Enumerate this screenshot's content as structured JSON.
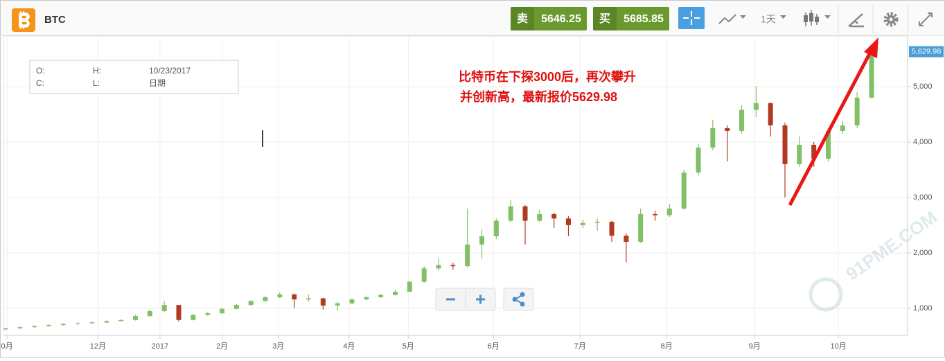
{
  "header": {
    "symbol": "BTC",
    "sell_label": "卖",
    "sell_price": 5646.25,
    "buy_label": "买",
    "buy_price": 5685.85,
    "interval": "1天"
  },
  "info_box": {
    "o": "O:",
    "h": "H:",
    "date": "10/23/2017",
    "c": "C:",
    "l": "L:",
    "date_label": "日期"
  },
  "watermark": "91PME.COM",
  "chart_data": {
    "type": "candlestick",
    "annotations": [
      "比特币在下探3000后，再次攀升",
      "并创新高，最新报价5629.98"
    ],
    "categories": [
      null,
      null,
      null,
      null,
      null,
      null,
      null,
      null,
      null,
      null,
      null,
      null,
      null,
      null,
      null,
      null,
      null,
      null,
      null,
      null,
      null,
      null,
      null,
      null,
      null,
      null,
      null,
      null,
      null,
      null,
      null,
      null,
      null,
      null,
      null,
      null,
      null,
      null,
      null,
      null,
      null,
      null,
      null,
      null,
      null,
      null,
      null,
      null,
      null,
      null,
      null,
      null,
      null,
      null,
      null,
      null,
      null,
      null,
      null,
      null,
      null
    ],
    "open": [
      620,
      640,
      660,
      680,
      700,
      720,
      730,
      745,
      770,
      790,
      860,
      950,
      1060,
      790,
      880,
      910,
      990,
      1060,
      1130,
      1200,
      1250,
      1160,
      1180,
      1050,
      1090,
      1160,
      1200,
      1240,
      1300,
      1480,
      1720,
      1780,
      1760,
      2150,
      2300,
      2580,
      2840,
      2580,
      2700,
      2620,
      2500,
      2540,
      2560,
      2310,
      2200,
      2700,
      2680,
      2800,
      3450,
      3900,
      4250,
      4200,
      4580,
      4700,
      4300,
      3600,
      3950,
      3700,
      4200,
      4300,
      4800
    ],
    "high": [
      650,
      670,
      690,
      710,
      730,
      745,
      760,
      780,
      800,
      880,
      980,
      1130,
      1060,
      900,
      930,
      1010,
      1080,
      1150,
      1220,
      1290,
      1270,
      1250,
      1190,
      1110,
      1180,
      1220,
      1260,
      1330,
      1500,
      1760,
      1900,
      1820,
      2800,
      2420,
      2620,
      2960,
      2860,
      2780,
      2720,
      2660,
      2600,
      2620,
      2580,
      2350,
      2800,
      2760,
      2880,
      3500,
      3960,
      4400,
      4300,
      4660,
      5010,
      4720,
      4350,
      4100,
      4000,
      4250,
      4380,
      4900,
      5630
    ],
    "low": [
      600,
      630,
      650,
      670,
      690,
      700,
      720,
      735,
      760,
      780,
      850,
      940,
      760,
      780,
      870,
      900,
      980,
      1050,
      1120,
      1180,
      1000,
      1120,
      980,
      960,
      1070,
      1150,
      1190,
      1230,
      1290,
      1460,
      1680,
      1700,
      1740,
      1900,
      2250,
      2550,
      2150,
      2560,
      2450,
      2300,
      2450,
      2400,
      2200,
      1830,
      2180,
      2580,
      2650,
      2780,
      3400,
      3850,
      3650,
      4150,
      4450,
      4100,
      3000,
      3550,
      3550,
      3650,
      4150,
      4250,
      4780
    ],
    "close": [
      640,
      660,
      680,
      700,
      720,
      730,
      745,
      770,
      790,
      860,
      950,
      1060,
      790,
      880,
      910,
      990,
      1060,
      1130,
      1200,
      1250,
      1160,
      1180,
      1050,
      1090,
      1160,
      1200,
      1240,
      1300,
      1480,
      1720,
      1780,
      1760,
      2150,
      2300,
      2580,
      2840,
      2580,
      2700,
      2620,
      2500,
      2540,
      2560,
      2310,
      2200,
      2700,
      2680,
      2800,
      3450,
      3900,
      4250,
      4200,
      4580,
      4700,
      4300,
      3600,
      3950,
      3700,
      4200,
      4300,
      4800,
      5630
    ],
    "up_color": "#82c065",
    "down_color": "#b23a22",
    "ylim": [
      512,
      5937
    ],
    "yticks": [
      {
        "value": 1000,
        "label": "1,000"
      },
      {
        "value": 2000,
        "label": "2,000"
      },
      {
        "value": 3000,
        "label": "3,000"
      },
      {
        "value": 4000,
        "label": "4,000"
      },
      {
        "value": 5000,
        "label": "5,000"
      }
    ],
    "xticks": [
      {
        "value": 0.1,
        "label": "0月"
      },
      {
        "value": 6.4,
        "label": "12月"
      },
      {
        "value": 10.7,
        "label": "2017"
      },
      {
        "value": 15,
        "label": "2月"
      },
      {
        "value": 18.9,
        "label": "3月"
      },
      {
        "value": 23.8,
        "label": "4月"
      },
      {
        "value": 27.9,
        "label": "5月"
      },
      {
        "value": 33.8,
        "label": "6月"
      },
      {
        "value": 39.8,
        "label": "7月"
      },
      {
        "value": 45.8,
        "label": "8月"
      },
      {
        "value": 51.9,
        "label": "9月"
      },
      {
        "value": 57.7,
        "label": "10月"
      }
    ],
    "last_price": {
      "value": 5629.98,
      "label": "5,629.98"
    },
    "grid": true
  }
}
